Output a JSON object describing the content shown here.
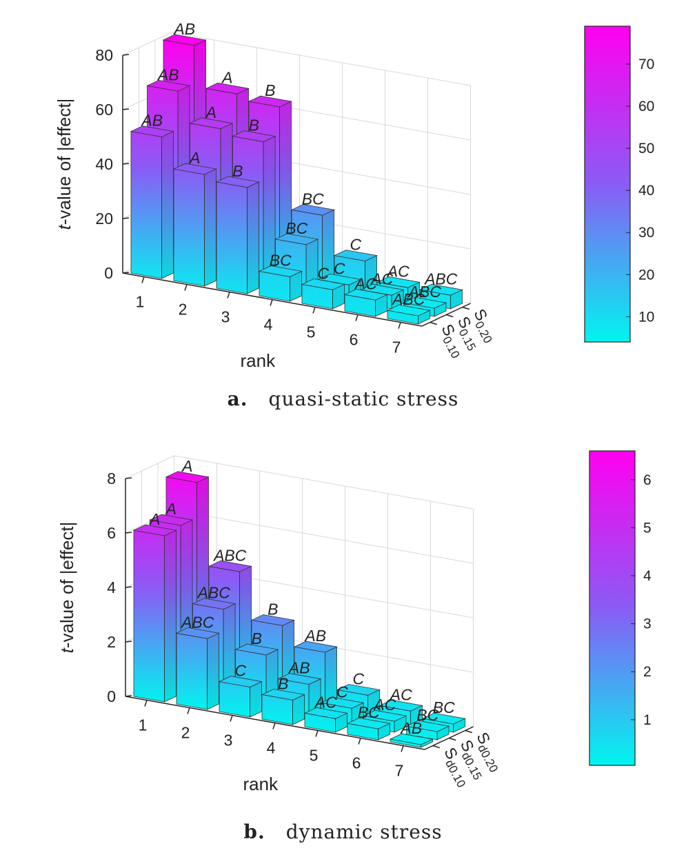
{
  "chart_data": [
    {
      "type": "bar3d",
      "caption_letter": "a.",
      "caption_text": "quasi-static stress",
      "xlabel": "rank",
      "ylabel_italic": "t",
      "ylabel_rest": "-value of |effect|",
      "zlim": [
        0,
        80
      ],
      "zticks": [
        0,
        20,
        40,
        60,
        80
      ],
      "ranks": [
        1,
        2,
        3,
        4,
        5,
        6,
        7
      ],
      "depth_labels": [
        {
          "main": "S",
          "sub": "0.10"
        },
        {
          "main": "S",
          "sub": "0.15"
        },
        {
          "main": "S",
          "sub": "0.20"
        }
      ],
      "series": [
        {
          "labels": [
            "AB",
            "A",
            "B",
            "BC",
            "C",
            "AC",
            "ABC"
          ],
          "values": [
            52,
            41,
            39,
            9,
            7,
            6,
            3
          ]
        },
        {
          "labels": [
            "AB",
            "A",
            "B",
            "BC",
            "C",
            "AC",
            "ABC"
          ],
          "values": [
            66,
            55,
            53,
            18,
            6,
            5,
            3
          ]
        },
        {
          "labels": [
            "AB",
            "A",
            "B",
            "BC",
            "C",
            "AC",
            "ABC"
          ],
          "values": [
            80,
            65,
            63,
            26,
            12,
            5,
            5
          ]
        }
      ],
      "colorbar": {
        "min": 4,
        "max": 79,
        "ticks": [
          10,
          20,
          30,
          40,
          50,
          60,
          70
        ]
      },
      "colors": {
        "low": "#00f5f0",
        "mid": "#8a5cf5",
        "high": "#ff00f0"
      }
    },
    {
      "type": "bar3d",
      "caption_letter": "b.",
      "caption_text": "dynamic stress",
      "xlabel": "rank",
      "ylabel_italic": "t",
      "ylabel_rest": "-value of |effect|",
      "zlim": [
        0,
        8
      ],
      "zticks": [
        0,
        2,
        4,
        6,
        8
      ],
      "ranks": [
        1,
        2,
        3,
        4,
        5,
        6,
        7
      ],
      "depth_labels": [
        {
          "main": "S",
          "sub": "d0.10"
        },
        {
          "main": "S",
          "sub": "d0.15"
        },
        {
          "main": "S",
          "sub": "d0.20"
        }
      ],
      "series": [
        {
          "labels": [
            "A",
            "ABC",
            "C",
            "B",
            "AC",
            "BC",
            "AB"
          ],
          "values": [
            6.1,
            2.6,
            1.1,
            0.9,
            0.5,
            0.4,
            0.1
          ]
        },
        {
          "labels": [
            "A",
            "ABC",
            "B",
            "AB",
            "C",
            "AC",
            "BC"
          ],
          "values": [
            6.2,
            3.4,
            2.0,
            1.2,
            0.6,
            0.4,
            0.3
          ]
        },
        {
          "labels": [
            "A",
            "ABC",
            "B",
            "AB",
            "C",
            "AC",
            "BC"
          ],
          "values": [
            7.5,
            4.5,
            2.8,
            2.1,
            0.8,
            0.5,
            0.3
          ]
        }
      ],
      "colorbar": {
        "min": 0.05,
        "max": 6.6,
        "ticks": [
          1,
          2,
          3,
          4,
          5,
          6
        ]
      },
      "colors": {
        "low": "#00f5f0",
        "mid": "#8a5cf5",
        "high": "#ff00f0"
      }
    }
  ]
}
